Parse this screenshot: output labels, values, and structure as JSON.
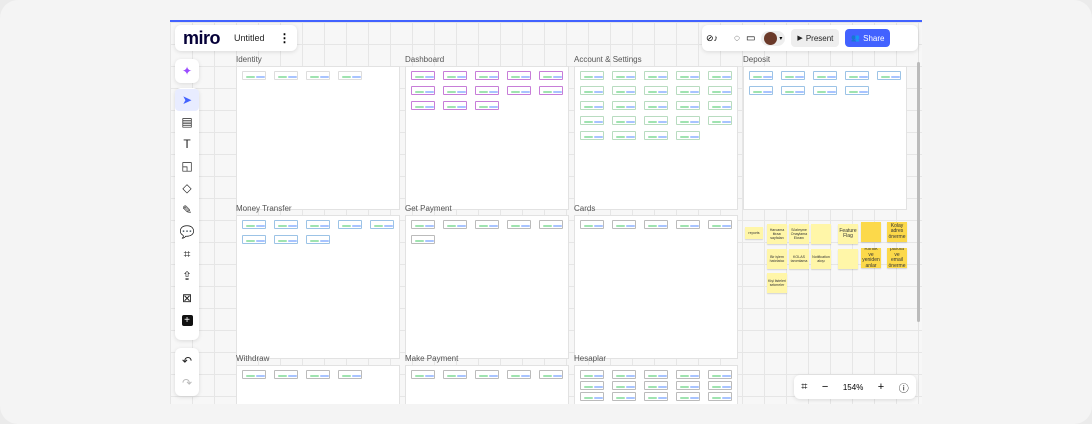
{
  "app": {
    "logo": "miro",
    "board_title": "Untitled"
  },
  "toolbar_right": {
    "present_label": "Present",
    "share_label": "Share"
  },
  "zoom": {
    "level": "154%"
  },
  "colors": {
    "accent": "#4262ff",
    "sticky": "#fff6a8",
    "sticky_dark": "#fcd94a"
  },
  "left_tools": [
    "sparkle-icon",
    "select-icon",
    "templates-icon",
    "text-icon",
    "sticky-note-icon",
    "shapes-icon",
    "pen-icon",
    "comment-icon",
    "frame-icon",
    "upload-icon",
    "close-box-icon",
    "more-icon"
  ],
  "frames": [
    {
      "title": "Identity"
    },
    {
      "title": "Dashboard"
    },
    {
      "title": "Account & Settings"
    },
    {
      "title": "Deposit"
    },
    {
      "title": "Money Transfer"
    },
    {
      "title": "Get Payment"
    },
    {
      "title": "Cards"
    },
    {
      "title": "Withdraw"
    },
    {
      "title": "Make Payment"
    },
    {
      "title": "Hesaplar"
    }
  ],
  "stickies": [
    {
      "text": "reports",
      "dark": false
    },
    {
      "text": "Harcama itirazı sayfaları",
      "dark": false
    },
    {
      "text": "Sözleşme Onaylama Ekranı",
      "dark": false
    },
    {
      "text": "",
      "dark": false
    },
    {
      "text": "Feature Flag",
      "dark": false
    },
    {
      "text": "",
      "dark": true
    },
    {
      "text": "Kolay adres önerme",
      "dark": true
    },
    {
      "text": "Bir işlem hatırlatıcı",
      "dark": false
    },
    {
      "text": "KOLAS tanımlama",
      "dark": false
    },
    {
      "text": "Notification akışı",
      "dark": false
    },
    {
      "text": "",
      "dark": false
    },
    {
      "text": "Kimlik ve yeniden anlar",
      "dark": true
    },
    {
      "text": "parola ve email önerme",
      "dark": true
    },
    {
      "text": "Kişi listeleri sekmeler",
      "dark": false
    }
  ]
}
